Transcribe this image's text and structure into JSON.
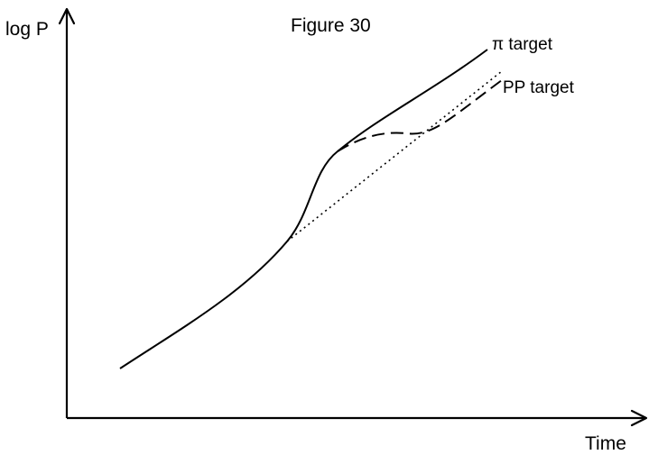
{
  "chart_data": {
    "type": "line",
    "title": "Figure 30",
    "ylabel": "log P",
    "xlabel": "Time",
    "grid": false,
    "series": [
      {
        "name": "π target",
        "style": "solid"
      },
      {
        "name": "PP target",
        "style": "dashed"
      },
      {
        "name": "",
        "style": "dotted"
      }
    ]
  }
}
